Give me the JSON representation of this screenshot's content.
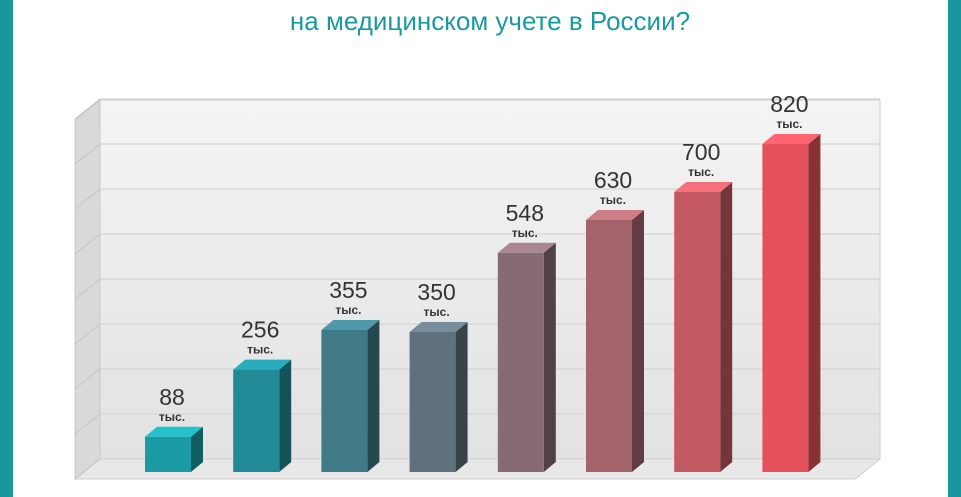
{
  "chart_data": {
    "type": "bar3d",
    "title": "на медицинском учете в России?",
    "values": [
      88,
      256,
      355,
      350,
      548,
      630,
      700,
      820
    ],
    "unit_label": "тыс.",
    "colors": [
      "#1a9ba3",
      "#218a96",
      "#3f7a86",
      "#5f717c",
      "#876b74",
      "#a5646c",
      "#c35a63",
      "#e5515a"
    ],
    "ylim": [
      0,
      900
    ],
    "yticks": [
      0,
      112.5,
      225,
      337.5,
      450,
      562.5,
      675,
      787.5,
      900
    ],
    "grid": true
  }
}
